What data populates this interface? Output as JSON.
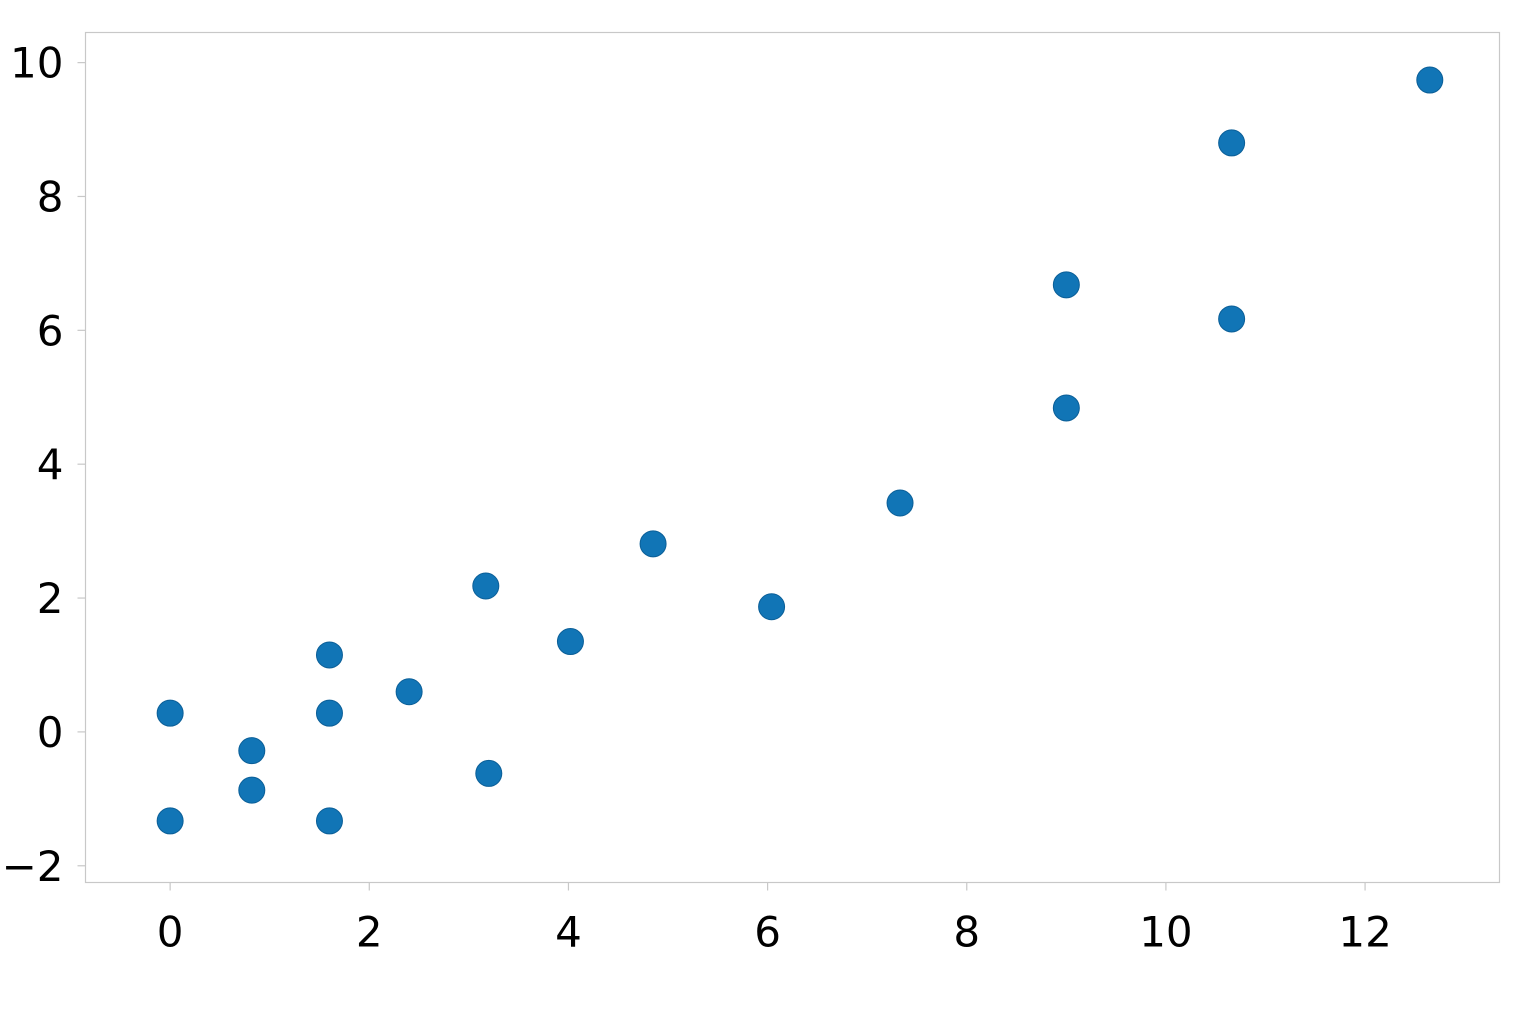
{
  "chart_data": {
    "type": "scatter",
    "title": "",
    "xlabel": "",
    "ylabel": "",
    "xlim": [
      -0.85,
      13.35
    ],
    "ylim": [
      -2.25,
      10.45
    ],
    "xticks": [
      0,
      2,
      4,
      6,
      8,
      10,
      12
    ],
    "yticks": [
      -2,
      0,
      2,
      4,
      6,
      8,
      10
    ],
    "xtick_labels": [
      "0",
      "2",
      "4",
      "6",
      "8",
      "10",
      "12"
    ],
    "ytick_labels": [
      "−2",
      "0",
      "2",
      "4",
      "6",
      "8",
      "10"
    ],
    "grid": false,
    "colors": {
      "marker": "#1175b6",
      "marker_edge": "#0b5f98",
      "frame": "#c8c8c8",
      "tick_label": "#000000"
    },
    "series": [
      {
        "points": [
          {
            "x": 0.0,
            "y": 0.28
          },
          {
            "x": 0.0,
            "y": -1.33
          },
          {
            "x": 0.82,
            "y": -0.28
          },
          {
            "x": 0.82,
            "y": -0.87
          },
          {
            "x": 1.6,
            "y": 1.15
          },
          {
            "x": 1.6,
            "y": 0.28
          },
          {
            "x": 1.6,
            "y": -1.33
          },
          {
            "x": 2.4,
            "y": 0.6
          },
          {
            "x": 3.17,
            "y": 2.18
          },
          {
            "x": 3.2,
            "y": -0.62
          },
          {
            "x": 4.02,
            "y": 1.35
          },
          {
            "x": 4.85,
            "y": 2.81
          },
          {
            "x": 6.04,
            "y": 1.87
          },
          {
            "x": 7.33,
            "y": 3.42
          },
          {
            "x": 9.0,
            "y": 6.68
          },
          {
            "x": 9.0,
            "y": 4.84
          },
          {
            "x": 10.66,
            "y": 8.8
          },
          {
            "x": 10.66,
            "y": 6.17
          },
          {
            "x": 12.65,
            "y": 9.74
          }
        ]
      }
    ]
  }
}
